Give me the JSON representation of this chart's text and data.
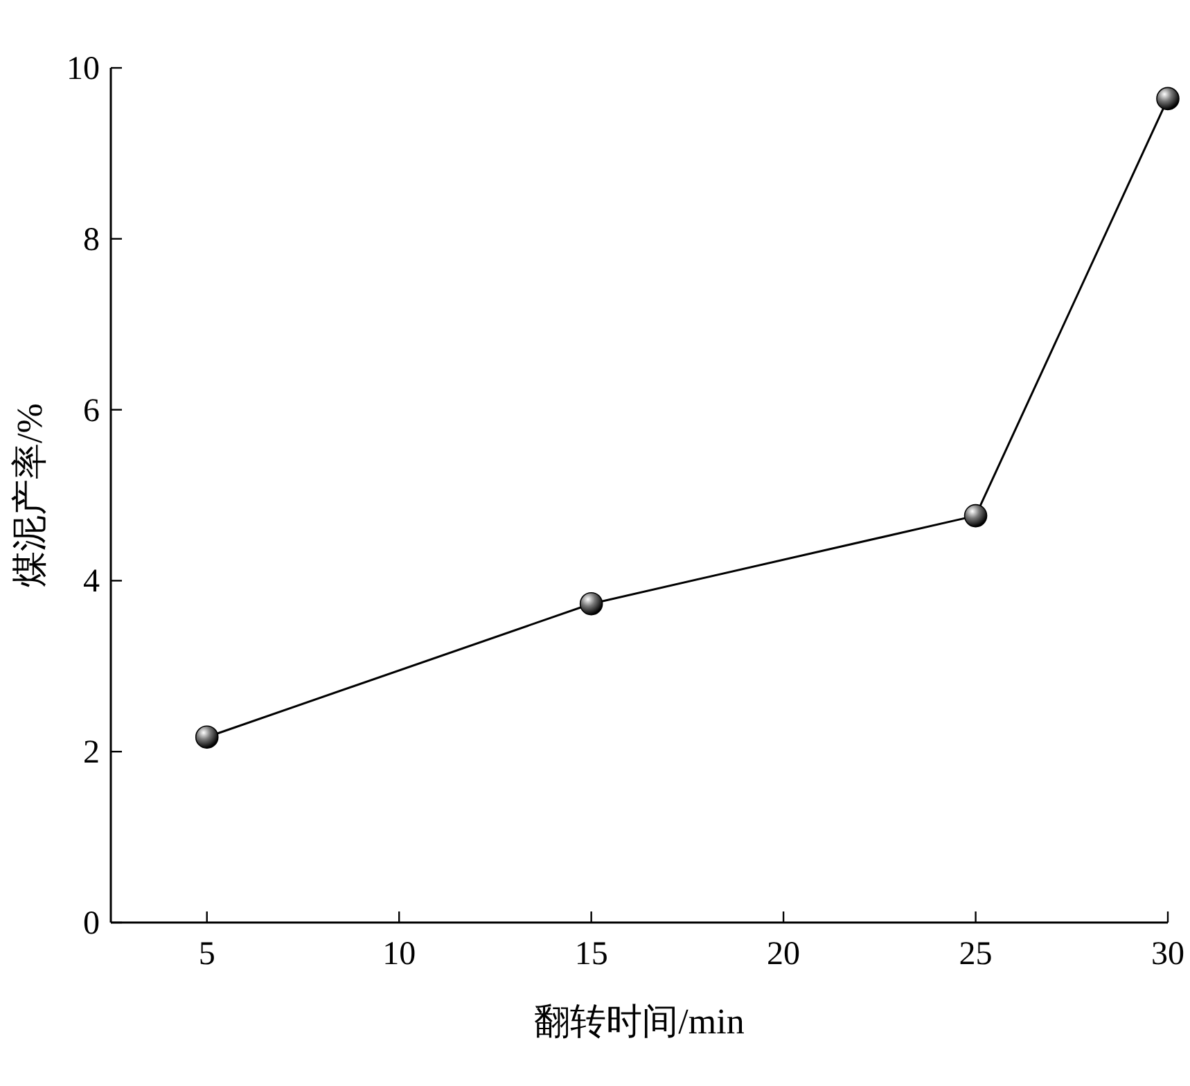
{
  "chart_data": {
    "type": "line",
    "xlabel": "翻转时间/min",
    "ylabel": "煤泥产率/%",
    "x": [
      5,
      15,
      25,
      30
    ],
    "series": [
      {
        "color": "#000000",
        "values": [
          2.17,
          3.73,
          4.76,
          9.64
        ]
      }
    ],
    "xlim": [
      2.5,
      30
    ],
    "ylim": [
      0,
      10
    ],
    "xticks": [
      5,
      10,
      15,
      20,
      25,
      30
    ],
    "yticks": [
      0,
      2,
      4,
      6,
      8,
      10
    ],
    "marker": "circle",
    "line_style": "solid"
  }
}
